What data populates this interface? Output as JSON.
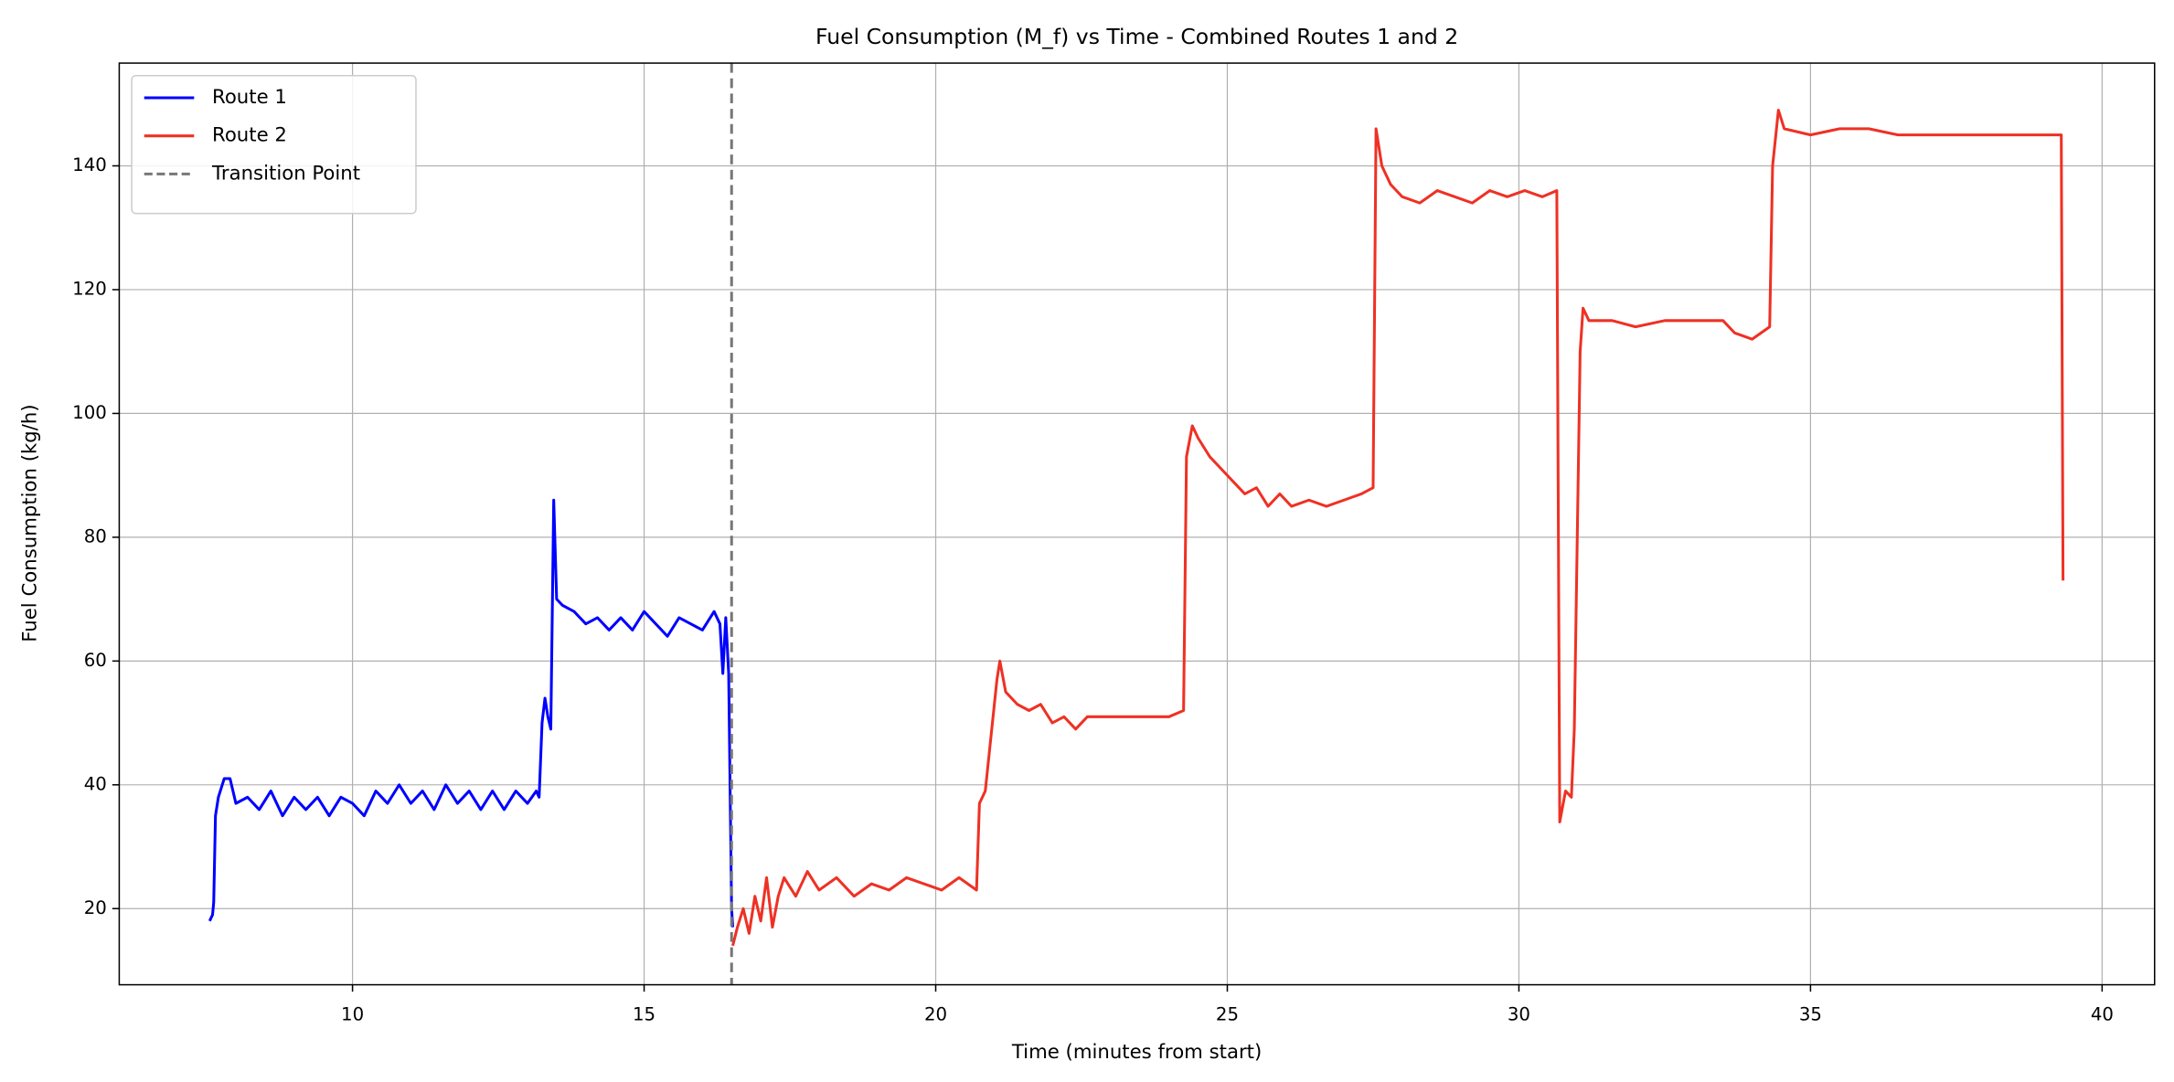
{
  "chart_data": {
    "type": "line",
    "title": "Fuel Consumption (M_f) vs Time - Combined Routes 1 and 2",
    "x_label": "Time (minutes from start)",
    "y_label": "Fuel Consumption (kg/h)",
    "xlim": [
      6.0,
      40.9
    ],
    "ylim": [
      7.7,
      156.6
    ],
    "xticks": [
      10,
      15,
      20,
      25,
      30,
      35,
      40
    ],
    "yticks": [
      20,
      40,
      60,
      80,
      100,
      120,
      140
    ],
    "grid": true,
    "legend": "upper-left",
    "series": [
      {
        "name": "Route 1",
        "color": "#0000ff",
        "x": [
          7.55,
          7.6,
          7.62,
          7.65,
          7.7,
          7.8,
          7.9,
          8.0,
          8.2,
          8.4,
          8.6,
          8.8,
          9.0,
          9.2,
          9.4,
          9.6,
          9.8,
          10.0,
          10.2,
          10.4,
          10.6,
          10.8,
          11.0,
          11.2,
          11.4,
          11.6,
          11.8,
          12.0,
          12.2,
          12.4,
          12.6,
          12.8,
          13.0,
          13.15,
          13.2,
          13.25,
          13.3,
          13.35,
          13.4,
          13.45,
          13.5,
          13.6,
          13.8,
          14.0,
          14.2,
          14.4,
          14.6,
          14.8,
          15.0,
          15.2,
          15.4,
          15.6,
          15.8,
          16.0,
          16.2,
          16.3,
          16.35,
          16.4,
          16.45,
          16.5,
          16.52
        ],
        "values": [
          18,
          19,
          21,
          35,
          38,
          41,
          41,
          37,
          38,
          36,
          39,
          35,
          38,
          36,
          38,
          35,
          38,
          37,
          35,
          39,
          37,
          40,
          37,
          39,
          36,
          40,
          37,
          39,
          36,
          39,
          36,
          39,
          37,
          39,
          38,
          50,
          54,
          51,
          49,
          86,
          70,
          69,
          68,
          66,
          67,
          65,
          67,
          65,
          68,
          66,
          64,
          67,
          66,
          65,
          68,
          66,
          58,
          67,
          58,
          20,
          17
        ]
      },
      {
        "name": "Route 2",
        "color": "#ee3124",
        "x": [
          16.52,
          16.6,
          16.7,
          16.8,
          16.9,
          17.0,
          17.1,
          17.2,
          17.3,
          17.4,
          17.6,
          17.8,
          18.0,
          18.3,
          18.6,
          18.9,
          19.2,
          19.5,
          19.8,
          20.1,
          20.4,
          20.7,
          20.75,
          20.85,
          20.95,
          21.05,
          21.1,
          21.2,
          21.4,
          21.6,
          21.8,
          22.0,
          22.2,
          22.4,
          22.6,
          23.0,
          23.5,
          24.0,
          24.25,
          24.3,
          24.4,
          24.5,
          24.7,
          24.9,
          25.1,
          25.3,
          25.5,
          25.7,
          25.9,
          26.1,
          26.4,
          26.7,
          27.0,
          27.3,
          27.5,
          27.55,
          27.65,
          27.8,
          28.0,
          28.3,
          28.6,
          28.9,
          29.2,
          29.5,
          29.8,
          30.1,
          30.4,
          30.65,
          30.7,
          30.8,
          30.9,
          30.95,
          31.05,
          31.1,
          31.2,
          31.6,
          32.0,
          32.5,
          33.0,
          33.5,
          33.7,
          34.0,
          34.3,
          34.35,
          34.45,
          34.55,
          35.0,
          35.5,
          36.0,
          36.5,
          37.0,
          37.5,
          38.0,
          38.5,
          39.0,
          39.3,
          39.33
        ],
        "values": [
          14,
          17,
          20,
          16,
          22,
          18,
          25,
          17,
          22,
          25,
          22,
          26,
          23,
          25,
          22,
          24,
          23,
          25,
          24,
          23,
          25,
          23,
          37,
          39,
          48,
          57,
          60,
          55,
          53,
          52,
          53,
          50,
          51,
          49,
          51,
          51,
          51,
          51,
          52,
          93,
          98,
          96,
          93,
          91,
          89,
          87,
          88,
          85,
          87,
          85,
          86,
          85,
          86,
          87,
          88,
          146,
          140,
          137,
          135,
          134,
          136,
          135,
          134,
          136,
          135,
          136,
          135,
          136,
          34,
          39,
          38,
          49,
          110,
          117,
          115,
          115,
          114,
          115,
          115,
          115,
          113,
          112,
          114,
          140,
          149,
          146,
          145,
          146,
          146,
          145,
          145,
          145,
          145,
          145,
          145,
          145,
          73
        ]
      }
    ],
    "vline": {
      "name": "Transition Point",
      "x": 16.5,
      "color": "#777777"
    }
  }
}
